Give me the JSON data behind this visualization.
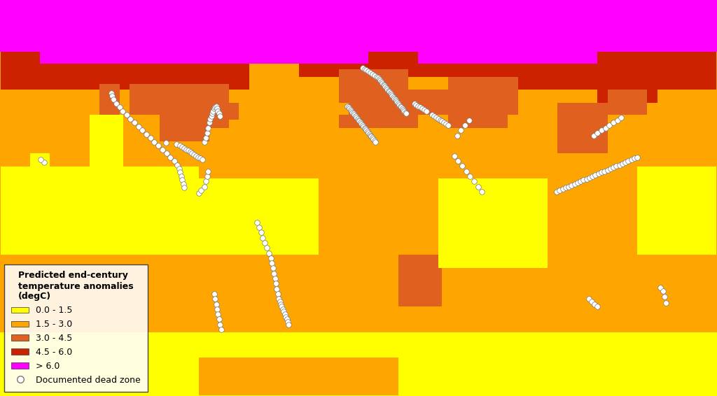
{
  "legend_title": "Predicted end-century\ntemperature anomalies\n(degC)",
  "legend_labels": [
    "0.0 - 1.5",
    "1.5 - 3.0",
    "3.0 - 4.5",
    "4.5 - 6.0",
    "> 6.0"
  ],
  "legend_colors": [
    "#FFFF00",
    "#FFA500",
    "#E06020",
    "#CC2200",
    "#FF00FF"
  ],
  "dead_zone_label": "Documented dead zone",
  "figsize": [
    10.24,
    5.66
  ],
  "dpi": 100,
  "map_lon_min": -180,
  "map_lon_max": 180,
  "map_lat_min": -70,
  "map_lat_max": 85,
  "temp_bounds": [
    0,
    1.5,
    3.0,
    4.5,
    6.0,
    10.0
  ],
  "dead_zones_lon": [
    -124.2,
    -123.8,
    -123.0,
    -121.5,
    -120.0,
    -118.5,
    -116.5,
    -114.5,
    -112.5,
    -110.5,
    -108.5,
    -106.5,
    -104.5,
    -102.5,
    -100.5,
    -98.5,
    -96.5,
    -94.5,
    -92.5,
    -91.0,
    -90.0,
    -89.5,
    -89.0,
    -88.5,
    -88.0,
    -87.5,
    -96.8,
    -91.5,
    -89.5,
    -88.5,
    -87.5,
    -86.5,
    -85.5,
    -84.5,
    -83.5,
    -82.5,
    -81.5,
    -80.5,
    -79.5,
    -78.5,
    -77.5,
    -76.5,
    -76.0,
    -75.5,
    -75.0,
    -74.5,
    -74.0,
    -73.5,
    -73.0,
    -72.5,
    -72.0,
    -71.5,
    -71.0,
    -70.5,
    -70.0,
    -69.5,
    -157.8,
    -159.5,
    -80.0,
    -79.0,
    -77.5,
    -76.5,
    -76.0,
    -75.5,
    -51.0,
    -50.0,
    -49.0,
    -48.0,
    -47.0,
    -46.0,
    -45.0,
    -44.0,
    -43.5,
    -43.0,
    -42.5,
    -42.0,
    -41.5,
    -41.0,
    -40.5,
    -40.0,
    -39.5,
    -39.0,
    -38.5,
    -38.0,
    -37.5,
    -37.0,
    -36.5,
    -36.0,
    -35.5,
    -35.0,
    -72.5,
    -72.0,
    -71.5,
    -71.0,
    -70.5,
    -70.0,
    -69.5,
    -69.0,
    2.0,
    3.0,
    4.0,
    5.0,
    6.0,
    7.0,
    8.0,
    9.0,
    10.0,
    10.5,
    11.0,
    11.5,
    12.0,
    12.5,
    13.0,
    13.5,
    14.0,
    14.5,
    15.0,
    15.5,
    16.0,
    16.5,
    17.0,
    17.5,
    18.0,
    18.5,
    19.0,
    19.5,
    20.0,
    20.5,
    21.0,
    21.5,
    22.0,
    22.5,
    23.0,
    23.5,
    24.0,
    -5.5,
    -5.0,
    -4.5,
    -4.0,
    -3.5,
    -3.0,
    -2.5,
    -2.0,
    -1.5,
    -1.0,
    -0.5,
    0.0,
    0.5,
    1.0,
    1.5,
    2.0,
    2.5,
    3.0,
    3.5,
    4.0,
    4.5,
    5.0,
    5.5,
    6.0,
    6.5,
    7.0,
    7.5,
    8.0,
    8.5,
    28.0,
    29.0,
    30.0,
    31.0,
    32.0,
    33.0,
    34.0,
    37.0,
    38.0,
    39.0,
    40.0,
    41.0,
    42.0,
    43.0,
    44.0,
    45.0,
    48.0,
    50.0,
    52.0,
    54.0,
    56.0,
    58.0,
    60.0,
    62.0,
    49.5,
    51.5,
    53.5,
    55.5,
    99.5,
    101.0,
    102.5,
    104.0,
    105.5,
    107.0,
    108.5,
    110.0,
    111.5,
    113.0,
    114.5,
    116.0,
    117.5,
    119.0,
    120.5,
    122.0,
    123.5,
    125.0,
    126.5,
    128.0,
    129.5,
    131.0,
    132.5,
    134.0,
    135.5,
    137.0,
    138.5,
    140.0,
    118.0,
    120.0,
    122.0,
    124.0,
    126.0,
    128.0,
    130.0,
    132.0,
    115.5,
    117.0,
    118.5,
    120.0,
    151.5,
    153.0,
    153.5,
    154.5
  ],
  "dead_zones_lat": [
    48.5,
    47.5,
    46.0,
    44.5,
    43.0,
    41.5,
    40.0,
    38.5,
    37.0,
    35.5,
    34.0,
    32.5,
    31.0,
    29.5,
    28.0,
    26.5,
    25.0,
    23.5,
    22.0,
    20.5,
    19.0,
    17.5,
    16.0,
    14.5,
    13.0,
    11.5,
    29.0,
    28.5,
    28.0,
    27.5,
    27.0,
    26.5,
    26.0,
    25.5,
    25.0,
    24.5,
    24.0,
    23.5,
    23.0,
    22.5,
    29.5,
    31.0,
    33.0,
    35.0,
    37.0,
    38.5,
    39.5,
    40.5,
    41.5,
    42.5,
    43.0,
    43.5,
    42.5,
    41.5,
    40.5,
    39.5,
    21.5,
    22.5,
    9.5,
    10.5,
    12.0,
    14.0,
    16.0,
    18.0,
    -2.0,
    -4.0,
    -6.0,
    -8.0,
    -10.0,
    -12.0,
    -14.0,
    -16.0,
    -18.0,
    -20.0,
    -22.0,
    -24.0,
    -26.0,
    -28.0,
    -30.0,
    -32.0,
    -33.0,
    -34.0,
    -35.0,
    -36.0,
    -37.0,
    -38.0,
    -39.0,
    -40.0,
    -41.0,
    -42.0,
    -30.0,
    -32.0,
    -34.0,
    -36.0,
    -38.0,
    -40.0,
    -42.0,
    -44.0,
    58.5,
    58.0,
    57.5,
    57.0,
    56.5,
    56.0,
    55.5,
    55.0,
    54.5,
    54.0,
    53.5,
    53.0,
    52.5,
    52.0,
    51.5,
    51.0,
    50.5,
    50.0,
    49.5,
    49.0,
    48.5,
    48.0,
    47.5,
    47.0,
    46.5,
    46.0,
    45.5,
    45.0,
    44.5,
    44.0,
    43.5,
    43.0,
    42.5,
    42.0,
    41.5,
    41.0,
    40.5,
    43.5,
    43.0,
    42.5,
    42.0,
    41.5,
    41.0,
    40.5,
    40.0,
    39.5,
    39.0,
    38.5,
    38.0,
    37.5,
    37.0,
    36.5,
    36.0,
    35.5,
    35.0,
    34.5,
    34.0,
    33.5,
    33.0,
    32.5,
    32.0,
    31.5,
    31.0,
    30.5,
    30.0,
    29.5,
    44.5,
    44.0,
    43.5,
    43.0,
    42.5,
    42.0,
    41.5,
    40.0,
    39.5,
    39.0,
    38.5,
    38.0,
    37.5,
    37.0,
    36.5,
    36.0,
    24.0,
    22.0,
    20.0,
    18.0,
    16.0,
    14.0,
    12.0,
    10.0,
    32.0,
    34.0,
    36.0,
    38.0,
    10.0,
    10.5,
    11.0,
    11.5,
    12.0,
    12.5,
    13.0,
    13.5,
    14.0,
    14.5,
    15.0,
    15.5,
    16.0,
    16.5,
    17.0,
    17.5,
    18.0,
    18.5,
    19.0,
    19.5,
    20.0,
    20.5,
    21.0,
    21.5,
    22.0,
    22.5,
    23.0,
    23.5,
    32.0,
    33.0,
    34.0,
    35.0,
    36.0,
    37.0,
    38.0,
    39.0,
    -32.0,
    -33.0,
    -34.0,
    -35.0,
    -27.5,
    -29.0,
    -31.0,
    -33.5
  ]
}
